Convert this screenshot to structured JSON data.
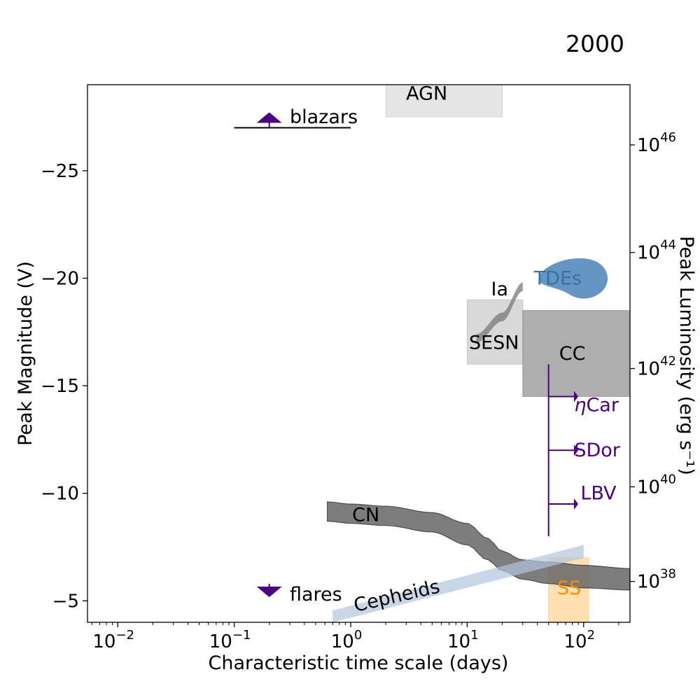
{
  "chart_data": {
    "type": "scatter",
    "title": "2000",
    "xlabel": "Characteristic time scale (days)",
    "ylabel": "Peak Magnitude (V)",
    "y2label": "Peak Luminosity (erg s⁻¹)",
    "xscale": "log",
    "xlim": [
      0.0055,
      250
    ],
    "ylim": [
      -4,
      -29
    ],
    "x_ticks": [
      {
        "value": 0.01,
        "base": "10",
        "exp": "−2"
      },
      {
        "value": 0.1,
        "base": "10",
        "exp": "−1"
      },
      {
        "value": 1,
        "base": "10",
        "exp": "0"
      },
      {
        "value": 10,
        "base": "10",
        "exp": "1"
      },
      {
        "value": 100,
        "base": "10",
        "exp": "2"
      }
    ],
    "y_ticks": [
      {
        "value": -25,
        "label": "−25"
      },
      {
        "value": -20,
        "label": "−20"
      },
      {
        "value": -15,
        "label": "−15"
      },
      {
        "value": -10,
        "label": "−10"
      },
      {
        "value": -5,
        "label": "−5"
      }
    ],
    "y2_ticks": [
      {
        "mag": -26.2,
        "base": "10",
        "exp": "46"
      },
      {
        "mag": -21.2,
        "base": "10",
        "exp": "44"
      },
      {
        "mag": -15.8,
        "base": "10",
        "exp": "42"
      },
      {
        "mag": -10.3,
        "base": "10",
        "exp": "40"
      },
      {
        "mag": -5.9,
        "base": "10",
        "exp": "38"
      }
    ],
    "regions": [
      {
        "name": "AGN",
        "shape": "rect",
        "x": [
          2,
          20
        ],
        "y": [
          -27.5,
          -29
        ],
        "fill": "#d3d3d3",
        "opacity": 0.6,
        "label_color": "#000000",
        "label_pos": [
          4.5,
          -28.6
        ]
      },
      {
        "name": "SESN",
        "shape": "rect",
        "x": [
          10,
          30
        ],
        "y": [
          -16,
          -19
        ],
        "fill": "#c8c8c8",
        "opacity": 0.7,
        "label_color": "#000000",
        "label_pos": [
          17,
          -17
        ]
      },
      {
        "name": "CC",
        "shape": "rect",
        "x": [
          30,
          250
        ],
        "y": [
          -14.5,
          -18.5
        ],
        "fill": "#9a9a9a",
        "opacity": 0.8,
        "label_color": "#000000",
        "label_pos": [
          80,
          -16.5
        ]
      },
      {
        "name": "SS",
        "shape": "rect",
        "x": [
          50,
          110
        ],
        "y": [
          -4,
          -7
        ],
        "fill": "#ffcc88",
        "opacity": 0.65,
        "label_color": "#ff8c00",
        "label_pos": [
          75,
          -5.6
        ]
      },
      {
        "name": "CN",
        "shape": "band",
        "x": [
          0.63,
          1,
          2,
          5,
          10,
          15,
          20,
          30,
          50,
          100,
          250
        ],
        "y_low": [
          -8.7,
          -8.6,
          -8.5,
          -8.2,
          -7.6,
          -6.9,
          -6.4,
          -6.0,
          -5.8,
          -5.6,
          -5.5
        ],
        "y_high": [
          -9.6,
          -9.5,
          -9.4,
          -9.1,
          -8.6,
          -7.9,
          -7.3,
          -6.9,
          -6.8,
          -6.65,
          -6.5
        ],
        "fill": "#666666",
        "opacity": 0.85,
        "label_color": "#000000",
        "label_pos": [
          1.35,
          -9.0
        ]
      },
      {
        "name": "Cepheids",
        "shape": "band",
        "x": [
          0.7,
          100
        ],
        "y_low": [
          -4,
          -7
        ],
        "y_high": [
          -4.55,
          -7.6
        ],
        "fill": "#b0c4de",
        "opacity": 0.7,
        "label_color": "#000000",
        "label_pos": [
          3,
          -4.8
        ],
        "label_rotate": -13
      },
      {
        "name": "TDEs",
        "shape": "blob",
        "center": [
          80,
          -20
        ],
        "fill": "#4a82b8",
        "opacity": 0.85,
        "label_color": "#3a6fa5",
        "label_pos": [
          60,
          -20
        ]
      },
      {
        "name": "Ia",
        "shape": "sliver",
        "x": [
          12,
          20,
          30
        ],
        "y_low": [
          -17.4,
          -18.4,
          -19.8
        ],
        "y_high": [
          -17.0,
          -18.0,
          -19.4
        ],
        "fill": "#808080",
        "opacity": 0.8,
        "label_color": "#000000",
        "label_pos": [
          19,
          -19.5
        ]
      }
    ],
    "markers": [
      {
        "name": "blazars",
        "type": "up-triangle-limit",
        "x": 0.2,
        "y": -27.0,
        "line_x": [
          0.1,
          1.0
        ],
        "color": "#4b0082",
        "label_pos": [
          0.3,
          -27.5
        ]
      },
      {
        "name": "flares",
        "type": "down-triangle-limit",
        "x": 0.2,
        "y": -5.4,
        "color": "#4b0082",
        "label_pos": [
          0.3,
          -5.3
        ]
      }
    ],
    "lbv": {
      "color": "#4b0082",
      "x": 50,
      "y_top": -16.0,
      "y_bottom": -8.0,
      "arrow_to": 85,
      "items": [
        {
          "name": "ηCar",
          "y": -14.5,
          "label_pos": [
            83,
            -14.1
          ]
        },
        {
          "name": "SDor",
          "y": -12.0,
          "label_pos": [
            83,
            -12.0
          ]
        },
        {
          "name": "LBV",
          "y": -9.5,
          "label_pos": [
            94,
            -10.0
          ]
        }
      ]
    }
  }
}
